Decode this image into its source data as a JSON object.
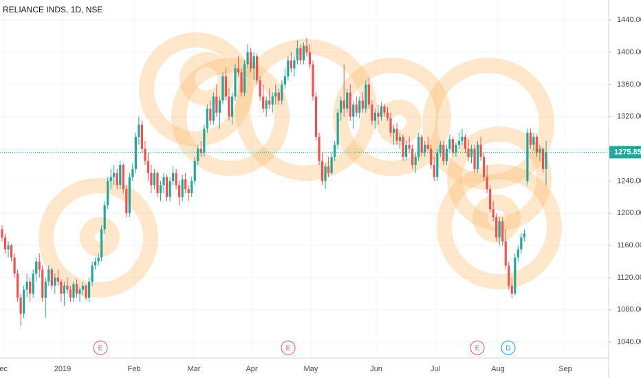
{
  "chart_data": {
    "type": "candlestick",
    "title": "RELIANCE INDS, 1D, NSE",
    "up_color": "#26a69a",
    "down_color": "#ef5350",
    "ylim": [
      1020,
      1465
    ],
    "yticks": [
      {
        "value": 1040,
        "label": "1040.00"
      },
      {
        "value": 1080,
        "label": "1080.00"
      },
      {
        "value": 1120,
        "label": "1120.00"
      },
      {
        "value": 1160,
        "label": "1160.00"
      },
      {
        "value": 1200,
        "label": "1200.00"
      },
      {
        "value": 1240,
        "label": "1240.00"
      },
      {
        "value": 1280,
        "label": "1280.00"
      },
      {
        "value": 1320,
        "label": "1320.00"
      },
      {
        "value": 1360,
        "label": "1360.00"
      },
      {
        "value": 1400,
        "label": "1400.00"
      },
      {
        "value": 1440,
        "label": "1440.00"
      }
    ],
    "grid": true,
    "x_labels": [
      "ec",
      "2019",
      "Feb",
      "Mar",
      "Apr",
      "May",
      "Jun",
      "Jul",
      "Aug",
      "Sep"
    ],
    "events": [
      {
        "label": "E",
        "color": "#e0566b"
      },
      {
        "label": "E",
        "color": "#e0566b"
      },
      {
        "label": "E",
        "color": "#e0566b"
      },
      {
        "label": "D",
        "color": "#2196f3"
      }
    ],
    "last_price": {
      "value": 1275.85,
      "label": "1275.85"
    },
    "candles": [
      [
        1180,
        1185,
        1165,
        1170
      ],
      [
        1170,
        1175,
        1150,
        1155
      ],
      [
        1155,
        1165,
        1145,
        1160
      ],
      [
        1160,
        1162,
        1140,
        1145
      ],
      [
        1145,
        1150,
        1120,
        1125
      ],
      [
        1125,
        1130,
        1090,
        1095
      ],
      [
        1095,
        1100,
        1060,
        1075
      ],
      [
        1075,
        1110,
        1070,
        1105
      ],
      [
        1105,
        1125,
        1095,
        1115
      ],
      [
        1115,
        1120,
        1090,
        1100
      ],
      [
        1100,
        1130,
        1095,
        1125
      ],
      [
        1125,
        1145,
        1115,
        1140
      ],
      [
        1140,
        1150,
        1120,
        1130
      ],
      [
        1130,
        1135,
        1090,
        1095
      ],
      [
        1095,
        1120,
        1070,
        1115
      ],
      [
        1115,
        1135,
        1110,
        1130
      ],
      [
        1130,
        1132,
        1105,
        1110
      ],
      [
        1110,
        1125,
        1100,
        1120
      ],
      [
        1120,
        1130,
        1110,
        1115
      ],
      [
        1115,
        1118,
        1090,
        1100
      ],
      [
        1100,
        1115,
        1085,
        1110
      ],
      [
        1110,
        1120,
        1100,
        1105
      ],
      [
        1105,
        1110,
        1090,
        1095
      ],
      [
        1095,
        1115,
        1090,
        1112
      ],
      [
        1112,
        1118,
        1095,
        1100
      ],
      [
        1100,
        1108,
        1090,
        1105
      ],
      [
        1105,
        1115,
        1098,
        1110
      ],
      [
        1110,
        1112,
        1092,
        1095
      ],
      [
        1095,
        1120,
        1090,
        1115
      ],
      [
        1115,
        1140,
        1110,
        1135
      ],
      [
        1135,
        1145,
        1130,
        1140
      ],
      [
        1140,
        1150,
        1135,
        1145
      ],
      [
        1145,
        1185,
        1140,
        1180
      ],
      [
        1180,
        1215,
        1175,
        1210
      ],
      [
        1210,
        1245,
        1205,
        1240
      ],
      [
        1240,
        1255,
        1230,
        1245
      ],
      [
        1245,
        1260,
        1235,
        1250
      ],
      [
        1250,
        1255,
        1230,
        1235
      ],
      [
        1235,
        1265,
        1230,
        1260
      ],
      [
        1260,
        1262,
        1225,
        1230
      ],
      [
        1230,
        1235,
        1195,
        1200
      ],
      [
        1200,
        1250,
        1195,
        1245
      ],
      [
        1245,
        1262,
        1240,
        1255
      ],
      [
        1255,
        1300,
        1250,
        1295
      ],
      [
        1295,
        1320,
        1285,
        1310
      ],
      [
        1310,
        1315,
        1275,
        1280
      ],
      [
        1280,
        1290,
        1260,
        1265
      ],
      [
        1265,
        1275,
        1240,
        1250
      ],
      [
        1250,
        1260,
        1225,
        1235
      ],
      [
        1235,
        1255,
        1230,
        1250
      ],
      [
        1250,
        1252,
        1220,
        1225
      ],
      [
        1225,
        1240,
        1215,
        1235
      ],
      [
        1235,
        1250,
        1225,
        1245
      ],
      [
        1245,
        1248,
        1215,
        1220
      ],
      [
        1220,
        1245,
        1215,
        1240
      ],
      [
        1240,
        1258,
        1235,
        1250
      ],
      [
        1250,
        1255,
        1230,
        1235
      ],
      [
        1235,
        1240,
        1210,
        1220
      ],
      [
        1220,
        1248,
        1215,
        1242
      ],
      [
        1242,
        1250,
        1225,
        1230
      ],
      [
        1230,
        1235,
        1215,
        1225
      ],
      [
        1225,
        1245,
        1220,
        1240
      ],
      [
        1240,
        1270,
        1235,
        1265
      ],
      [
        1265,
        1285,
        1260,
        1280
      ],
      [
        1280,
        1290,
        1270,
        1275
      ],
      [
        1275,
        1310,
        1270,
        1305
      ],
      [
        1305,
        1335,
        1300,
        1330
      ],
      [
        1330,
        1340,
        1310,
        1315
      ],
      [
        1315,
        1350,
        1310,
        1345
      ],
      [
        1345,
        1360,
        1320,
        1325
      ],
      [
        1325,
        1345,
        1305,
        1340
      ],
      [
        1340,
        1375,
        1335,
        1370
      ],
      [
        1370,
        1380,
        1340,
        1345
      ],
      [
        1345,
        1355,
        1315,
        1320
      ],
      [
        1320,
        1350,
        1310,
        1345
      ],
      [
        1345,
        1385,
        1340,
        1380
      ],
      [
        1380,
        1395,
        1370,
        1375
      ],
      [
        1375,
        1380,
        1345,
        1350
      ],
      [
        1350,
        1390,
        1345,
        1385
      ],
      [
        1385,
        1410,
        1380,
        1400
      ],
      [
        1400,
        1405,
        1375,
        1380
      ],
      [
        1380,
        1400,
        1365,
        1395
      ],
      [
        1395,
        1398,
        1360,
        1365
      ],
      [
        1365,
        1370,
        1340,
        1345
      ],
      [
        1345,
        1360,
        1325,
        1330
      ],
      [
        1330,
        1345,
        1320,
        1340
      ],
      [
        1340,
        1355,
        1330,
        1335
      ],
      [
        1335,
        1350,
        1325,
        1345
      ],
      [
        1345,
        1360,
        1335,
        1350
      ],
      [
        1350,
        1355,
        1335,
        1340
      ],
      [
        1340,
        1365,
        1335,
        1360
      ],
      [
        1360,
        1380,
        1355,
        1370
      ],
      [
        1370,
        1395,
        1365,
        1390
      ],
      [
        1390,
        1400,
        1375,
        1380
      ],
      [
        1380,
        1395,
        1370,
        1390
      ],
      [
        1390,
        1415,
        1385,
        1405
      ],
      [
        1405,
        1410,
        1385,
        1390
      ],
      [
        1390,
        1412,
        1385,
        1408
      ],
      [
        1408,
        1418,
        1395,
        1400
      ],
      [
        1400,
        1410,
        1380,
        1385
      ],
      [
        1385,
        1390,
        1340,
        1345
      ],
      [
        1345,
        1350,
        1290,
        1295
      ],
      [
        1295,
        1300,
        1260,
        1265
      ],
      [
        1265,
        1275,
        1235,
        1240
      ],
      [
        1240,
        1262,
        1230,
        1258
      ],
      [
        1258,
        1270,
        1245,
        1250
      ],
      [
        1250,
        1275,
        1248,
        1270
      ],
      [
        1270,
        1290,
        1265,
        1285
      ],
      [
        1285,
        1330,
        1280,
        1325
      ],
      [
        1325,
        1345,
        1315,
        1340
      ],
      [
        1340,
        1385,
        1320,
        1330
      ],
      [
        1330,
        1355,
        1325,
        1350
      ],
      [
        1350,
        1360,
        1315,
        1320
      ],
      [
        1320,
        1340,
        1305,
        1335
      ],
      [
        1335,
        1345,
        1320,
        1325
      ],
      [
        1325,
        1345,
        1318,
        1340
      ],
      [
        1340,
        1350,
        1325,
        1330
      ],
      [
        1330,
        1365,
        1325,
        1360
      ],
      [
        1360,
        1368,
        1330,
        1335
      ],
      [
        1335,
        1340,
        1310,
        1315
      ],
      [
        1315,
        1330,
        1305,
        1325
      ],
      [
        1325,
        1335,
        1310,
        1320
      ],
      [
        1320,
        1338,
        1315,
        1333
      ],
      [
        1333,
        1336,
        1320,
        1325
      ],
      [
        1325,
        1332,
        1315,
        1318
      ],
      [
        1318,
        1325,
        1295,
        1300
      ],
      [
        1300,
        1310,
        1285,
        1305
      ],
      [
        1305,
        1312,
        1285,
        1290
      ],
      [
        1290,
        1300,
        1280,
        1295
      ],
      [
        1295,
        1298,
        1265,
        1270
      ],
      [
        1270,
        1290,
        1265,
        1285
      ],
      [
        1285,
        1295,
        1275,
        1280
      ],
      [
        1280,
        1285,
        1255,
        1260
      ],
      [
        1260,
        1275,
        1250,
        1270
      ],
      [
        1270,
        1300,
        1265,
        1295
      ],
      [
        1295,
        1298,
        1270,
        1275
      ],
      [
        1275,
        1290,
        1270,
        1285
      ],
      [
        1285,
        1295,
        1278,
        1280
      ],
      [
        1280,
        1285,
        1255,
        1260
      ],
      [
        1260,
        1270,
        1240,
        1245
      ],
      [
        1245,
        1280,
        1240,
        1275
      ],
      [
        1275,
        1290,
        1270,
        1285
      ],
      [
        1285,
        1290,
        1260,
        1265
      ],
      [
        1265,
        1285,
        1260,
        1280
      ],
      [
        1280,
        1298,
        1275,
        1292
      ],
      [
        1292,
        1295,
        1270,
        1275
      ],
      [
        1275,
        1288,
        1270,
        1285
      ],
      [
        1285,
        1300,
        1280,
        1290
      ],
      [
        1290,
        1305,
        1285,
        1295
      ],
      [
        1295,
        1298,
        1275,
        1280
      ],
      [
        1280,
        1292,
        1265,
        1270
      ],
      [
        1270,
        1285,
        1262,
        1280
      ],
      [
        1280,
        1285,
        1250,
        1255
      ],
      [
        1255,
        1290,
        1250,
        1285
      ],
      [
        1285,
        1295,
        1265,
        1270
      ],
      [
        1270,
        1275,
        1240,
        1245
      ],
      [
        1245,
        1260,
        1225,
        1230
      ],
      [
        1230,
        1235,
        1200,
        1205
      ],
      [
        1205,
        1215,
        1190,
        1195
      ],
      [
        1195,
        1200,
        1165,
        1170
      ],
      [
        1170,
        1195,
        1160,
        1190
      ],
      [
        1190,
        1195,
        1160,
        1165
      ],
      [
        1165,
        1180,
        1130,
        1135
      ],
      [
        1135,
        1140,
        1105,
        1110
      ],
      [
        1110,
        1120,
        1095,
        1100
      ],
      [
        1100,
        1150,
        1098,
        1145
      ],
      [
        1145,
        1160,
        1140,
        1155
      ],
      [
        1155,
        1175,
        1150,
        1170
      ],
      [
        1170,
        1180,
        1165,
        1175
      ],
      [
        1240,
        1305,
        1235,
        1300
      ],
      [
        1300,
        1305,
        1280,
        1285
      ],
      [
        1285,
        1300,
        1278,
        1295
      ],
      [
        1295,
        1298,
        1270,
        1275
      ],
      [
        1275,
        1285,
        1265,
        1280
      ],
      [
        1280,
        1282,
        1250,
        1255
      ],
      [
        1255,
        1290,
        1235,
        1275.85
      ]
    ]
  }
}
